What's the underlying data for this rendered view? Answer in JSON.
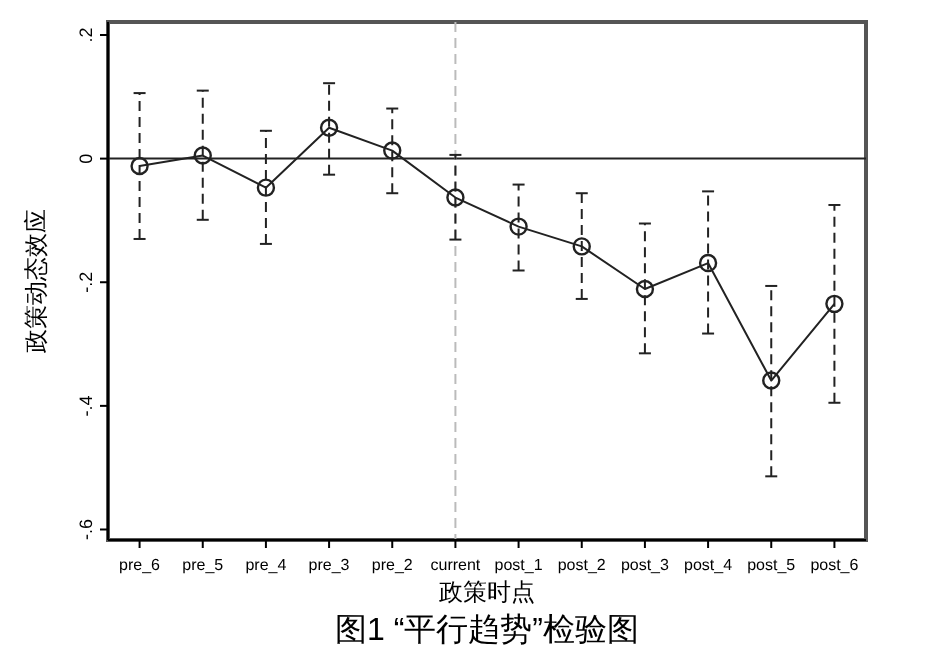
{
  "chart_data": {
    "type": "line",
    "title": "图1 “平行趋势”检验图",
    "xlabel": "政策时点",
    "ylabel": "政策动态效应",
    "categories": [
      "pre_6",
      "pre_5",
      "pre_4",
      "pre_3",
      "pre_2",
      "current",
      "post_1",
      "post_2",
      "post_3",
      "post_4",
      "post_5",
      "post_6"
    ],
    "series": [
      {
        "color": "#222222",
        "values": [
          -0.012,
          0.005,
          -0.047,
          0.05,
          0.013,
          -0.063,
          -0.11,
          -0.142,
          -0.211,
          -0.169,
          -0.359,
          -0.235
        ],
        "errors": [
          [
            -0.13,
            0.106
          ],
          [
            -0.099,
            0.11
          ],
          [
            -0.138,
            0.045
          ],
          [
            -0.026,
            0.122
          ],
          [
            -0.056,
            0.081
          ],
          [
            -0.131,
            0.006
          ],
          [
            -0.181,
            -0.042
          ],
          [
            -0.227,
            -0.056
          ],
          [
            -0.315,
            -0.105
          ],
          [
            -0.283,
            -0.053
          ],
          [
            -0.514,
            -0.206
          ],
          [
            -0.395,
            -0.075
          ]
        ]
      }
    ],
    "ylim": [
      -0.617,
      0.221
    ],
    "yticks": [
      {
        "value": -0.6,
        "label": "-.6"
      },
      {
        "value": -0.4,
        "label": "-.4"
      },
      {
        "value": -0.2,
        "label": "-.2"
      },
      0,
      {
        "value": 0.2,
        "label": ".2"
      }
    ],
    "ref_lines": [
      {
        "axis": "y",
        "value": 0,
        "color": "#222222",
        "line_style": "solid"
      },
      {
        "axis": "x",
        "value": "current",
        "color": "#bbbbbb",
        "line_style": "dashed"
      }
    ],
    "marker": "circle",
    "line_style": "solid",
    "grid": false
  }
}
